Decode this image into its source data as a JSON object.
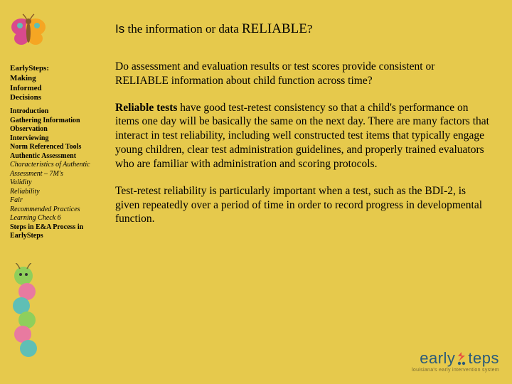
{
  "heading": {
    "prefix_sans": "Is",
    "mid": " the information or data ",
    "emph": "RELIABLE",
    "suffix": "?"
  },
  "body": {
    "p1": "Do assessment and evaluation results or test scores provide consistent or RELIABLE information about child function across time?",
    "p2_strong": "Reliable tests",
    "p2_rest": " have good test-retest consistency so that a child's performance on items one day will be basically the same on the next day. There are many factors that interact in test reliability, including well constructed test items that typically engage young children, clear test administration guidelines, and properly trained evaluators who are familiar with administration and scoring protocols.",
    "p3": "Test-retest reliability is particularly important when a test, such as the BDI-2, is given repeatedly over a  period of time in order to record progress in developmental function."
  },
  "sidebar": {
    "title_lines": [
      "EarlySteps:",
      "Making",
      "Informed",
      "Decisions"
    ],
    "items": [
      {
        "label": "Introduction",
        "style": "bold"
      },
      {
        "label": "Gathering Information",
        "style": "bold"
      },
      {
        "label": "Observation",
        "style": "bold"
      },
      {
        "label": "Interviewing",
        "style": "bold"
      },
      {
        "label": "Norm Referenced Tools",
        "style": "bold"
      },
      {
        "label": "Authentic Assessment",
        "style": "bold"
      },
      {
        "label": "Characteristics of Authentic Assessment – 7M's",
        "style": "italic"
      },
      {
        "label": "Validity",
        "style": "italic"
      },
      {
        "label": "Reliability",
        "style": "italic"
      },
      {
        "label": "Fair",
        "style": "italic"
      },
      {
        "label": "Recommended Practices",
        "style": "italic"
      },
      {
        "label": "Learning Check 6",
        "style": "italic"
      },
      {
        "label": "Steps in E&A Process in EarlySteps",
        "style": "bold"
      }
    ]
  },
  "logo": {
    "text_pre": "early",
    "text_post": "teps",
    "subtitle": "louisiana's early intervention system"
  },
  "colors": {
    "background": "#e6c94c",
    "logo_text": "#2a5b7a",
    "logo_dot": "#e84c3d",
    "butterfly_wing_l": "#d94a8c",
    "butterfly_wing_r": "#f5a623",
    "butterfly_body": "#8b5a2b",
    "caterpillar_green": "#8fcf5c",
    "caterpillar_pink": "#e87aa0",
    "caterpillar_teal": "#5fbfb5"
  }
}
